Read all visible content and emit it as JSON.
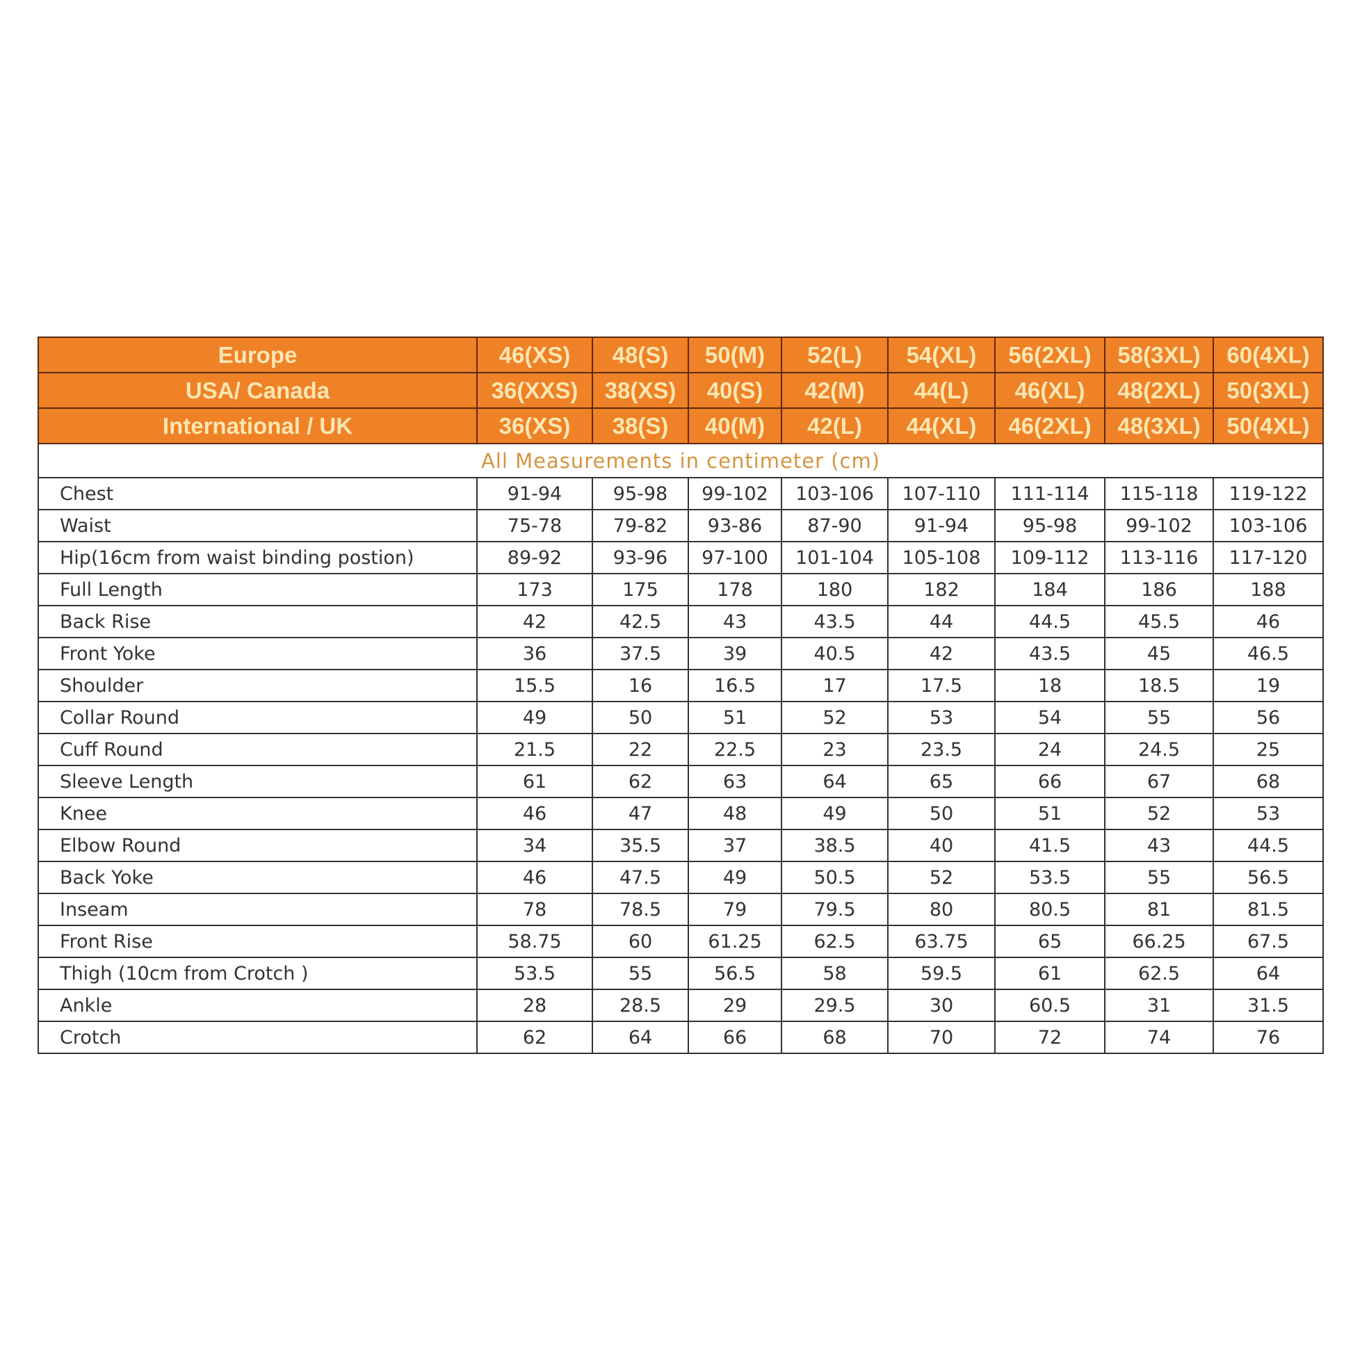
{
  "header_rows": [
    {
      "label": "Europe",
      "sizes": [
        "46(XS)",
        "48(S)",
        "50(M)",
        "52(L)",
        "54(XL)",
        "56(2XL)",
        "58(3XL)",
        "60(4XL)"
      ]
    },
    {
      "label": "USA/ Canada",
      "sizes": [
        "36(XXS)",
        "38(XS)",
        "40(S)",
        "42(M)",
        "44(L)",
        "46(XL)",
        "48(2XL)",
        "50(3XL)"
      ]
    },
    {
      "label": "International / UK",
      "sizes": [
        "36(XS)",
        "38(S)",
        "40(M)",
        "42(L)",
        "44(XL)",
        "46(2XL)",
        "48(3XL)",
        "50(4XL)"
      ]
    }
  ],
  "note": "All Measurements in centimeter (cm)",
  "rows": [
    {
      "label": "Chest",
      "values": [
        "91-94",
        "95-98",
        "99-102",
        "103-106",
        "107-110",
        "111-114",
        "115-118",
        "119-122"
      ]
    },
    {
      "label": "Waist",
      "values": [
        "75-78",
        "79-82",
        "93-86",
        "87-90",
        "91-94",
        "95-98",
        "99-102",
        "103-106"
      ]
    },
    {
      "label": "Hip(16cm from waist binding postion)",
      "values": [
        "89-92",
        "93-96",
        "97-100",
        "101-104",
        "105-108",
        "109-112",
        "113-116",
        "117-120"
      ]
    },
    {
      "label": "Full Length",
      "values": [
        "173",
        "175",
        "178",
        "180",
        "182",
        "184",
        "186",
        "188"
      ]
    },
    {
      "label": "Back Rise",
      "values": [
        "42",
        "42.5",
        "43",
        "43.5",
        "44",
        "44.5",
        "45.5",
        "46"
      ]
    },
    {
      "label": "Front Yoke",
      "values": [
        "36",
        "37.5",
        "39",
        "40.5",
        "42",
        "43.5",
        "45",
        "46.5"
      ]
    },
    {
      "label": "Shoulder",
      "values": [
        "15.5",
        "16",
        "16.5",
        "17",
        "17.5",
        "18",
        "18.5",
        "19"
      ]
    },
    {
      "label": "Collar Round",
      "values": [
        "49",
        "50",
        "51",
        "52",
        "53",
        "54",
        "55",
        "56"
      ]
    },
    {
      "label": "Cuff Round",
      "values": [
        "21.5",
        "22",
        "22.5",
        "23",
        "23.5",
        "24",
        "24.5",
        "25"
      ]
    },
    {
      "label": "Sleeve Length",
      "values": [
        "61",
        "62",
        "63",
        "64",
        "65",
        "66",
        "67",
        "68"
      ]
    },
    {
      "label": "Knee",
      "values": [
        "46",
        "47",
        "48",
        "49",
        "50",
        "51",
        "52",
        "53"
      ]
    },
    {
      "label": "Elbow Round",
      "values": [
        "34",
        "35.5",
        "37",
        "38.5",
        "40",
        "41.5",
        "43",
        "44.5"
      ]
    },
    {
      "label": "Back Yoke",
      "values": [
        "46",
        "47.5",
        "49",
        "50.5",
        "52",
        "53.5",
        "55",
        "56.5"
      ]
    },
    {
      "label": "Inseam",
      "values": [
        "78",
        "78.5",
        "79",
        "79.5",
        "80",
        "80.5",
        "81",
        "81.5"
      ]
    },
    {
      "label": "Front Rise",
      "values": [
        "58.75",
        "60",
        "61.25",
        "62.5",
        "63.75",
        "65",
        "66.25",
        "67.5"
      ]
    },
    {
      "label": "Thigh (10cm from Crotch )",
      "values": [
        "53.5",
        "55",
        "56.5",
        "58",
        "59.5",
        "61",
        "62.5",
        "64"
      ]
    },
    {
      "label": "Ankle",
      "values": [
        "28",
        "28.5",
        "29",
        "29.5",
        "30",
        "60.5",
        "31",
        "31.5"
      ]
    },
    {
      "label": "Crotch",
      "values": [
        "62",
        "64",
        "66",
        "68",
        "70",
        "72",
        "74",
        "76"
      ]
    }
  ],
  "colors": {
    "header_bg": "#ef8126",
    "header_text": "#fbe6b2",
    "note_text": "#d49440"
  }
}
